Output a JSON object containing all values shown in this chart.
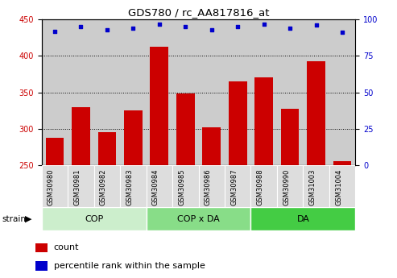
{
  "title": "GDS780 / rc_AA817816_at",
  "samples": [
    "GSM30980",
    "GSM30981",
    "GSM30982",
    "GSM30983",
    "GSM30984",
    "GSM30985",
    "GSM30986",
    "GSM30987",
    "GSM30988",
    "GSM30990",
    "GSM31003",
    "GSM31004"
  ],
  "counts": [
    288,
    330,
    296,
    325,
    413,
    349,
    302,
    365,
    371,
    328,
    393,
    256
  ],
  "percentiles": [
    92,
    95,
    93,
    94,
    97,
    95,
    93,
    95,
    97,
    94,
    96,
    91
  ],
  "groups": [
    {
      "label": "COP",
      "start": 0,
      "end": 4,
      "color": "#CCEECC"
    },
    {
      "label": "COP x DA",
      "start": 4,
      "end": 8,
      "color": "#88DD88"
    },
    {
      "label": "DA",
      "start": 8,
      "end": 12,
      "color": "#44CC44"
    }
  ],
  "ylim_left": [
    250,
    450
  ],
  "ylim_right": [
    0,
    100
  ],
  "yticks_left": [
    250,
    300,
    350,
    400,
    450
  ],
  "yticks_right": [
    0,
    25,
    50,
    75,
    100
  ],
  "bar_color": "#CC0000",
  "dot_color": "#0000CC",
  "bg_color": "#CCCCCC",
  "cell_color": "#DDDDDD",
  "legend_items": [
    {
      "label": "count",
      "color": "#CC0000"
    },
    {
      "label": "percentile rank within the sample",
      "color": "#0000CC"
    }
  ]
}
